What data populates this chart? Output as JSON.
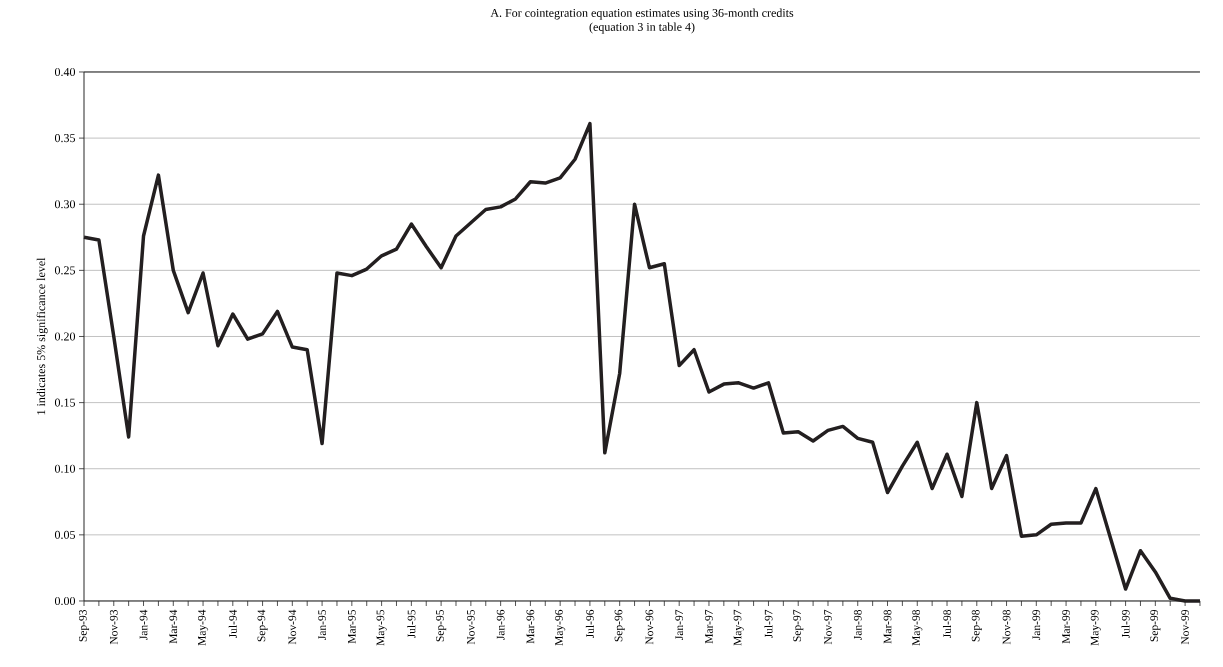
{
  "chart_data": {
    "type": "line",
    "title": "A. For cointegration equation estimates using 36-month credits",
    "subtitle": "(equation 3 in table 4)",
    "ylabel": "1 indicates 5% significance level",
    "categories": [
      "Sep-93",
      null,
      "Nov-93",
      null,
      "Jan-94",
      null,
      "Mar-94",
      null,
      "May-94",
      null,
      "Jul-94",
      null,
      "Sep-94",
      null,
      "Nov-94",
      null,
      "Jan-95",
      null,
      "Mar-95",
      null,
      "May-95",
      null,
      "Jul-95",
      null,
      "Sep-95",
      null,
      "Nov-95",
      null,
      "Jan-96",
      null,
      "Mar-96",
      null,
      "May-96",
      null,
      "Jul-96",
      null,
      "Sep-96",
      null,
      "Nov-96",
      null,
      "Jan-97",
      null,
      "Mar-97",
      null,
      "May-97",
      null,
      "Jul-97",
      null,
      "Sep-97",
      null,
      "Nov-97",
      null,
      "Jan-98",
      null,
      "Mar-98",
      null,
      "May-98",
      null,
      "Jul-98",
      null,
      "Sep-98",
      null,
      "Nov-98",
      null,
      "Jan-99",
      null,
      "Mar-99",
      null,
      "May-99",
      null,
      "Jul-99",
      null,
      "Sep-99",
      null,
      "Nov-99",
      null
    ],
    "series": [
      {
        "color": "#231f20",
        "values": [
          0.275,
          0.273,
          0.2,
          0.124,
          0.276,
          0.322,
          0.25,
          0.218,
          0.248,
          0.193,
          0.217,
          0.198,
          0.202,
          0.219,
          0.192,
          0.19,
          0.119,
          0.248,
          0.246,
          0.251,
          0.261,
          0.266,
          0.285,
          0.268,
          0.252,
          0.276,
          0.286,
          0.296,
          0.298,
          0.304,
          0.317,
          0.316,
          0.32,
          0.334,
          0.361,
          0.112,
          0.172,
          0.3,
          0.252,
          0.255,
          0.178,
          0.19,
          0.158,
          0.164,
          0.165,
          0.161,
          0.165,
          0.127,
          0.128,
          0.121,
          0.129,
          0.132,
          0.123,
          0.12,
          0.082,
          0.102,
          0.12,
          0.085,
          0.111,
          0.079,
          0.15,
          0.085,
          0.11,
          0.049,
          0.05,
          0.058,
          0.059,
          0.059,
          0.085,
          0.047,
          0.009,
          0.038,
          0.022,
          0.002,
          0.0,
          0.0
        ]
      }
    ],
    "ylim": [
      0,
      0.4
    ],
    "yticks": [
      {
        "value": 0,
        "label": "0.00"
      },
      {
        "value": 0.05,
        "label": "0.05"
      },
      {
        "value": 0.1,
        "label": "0.10"
      },
      {
        "value": 0.15,
        "label": "0.15"
      },
      {
        "value": 0.2,
        "label": "0.20"
      },
      {
        "value": 0.25,
        "label": "0.25"
      },
      {
        "value": 0.3,
        "label": "0.30"
      },
      {
        "value": 0.35,
        "label": "0.35"
      },
      {
        "value": 0.4,
        "label": "0.40"
      }
    ],
    "grid": "y",
    "marker": "none",
    "line_style": "solid"
  }
}
